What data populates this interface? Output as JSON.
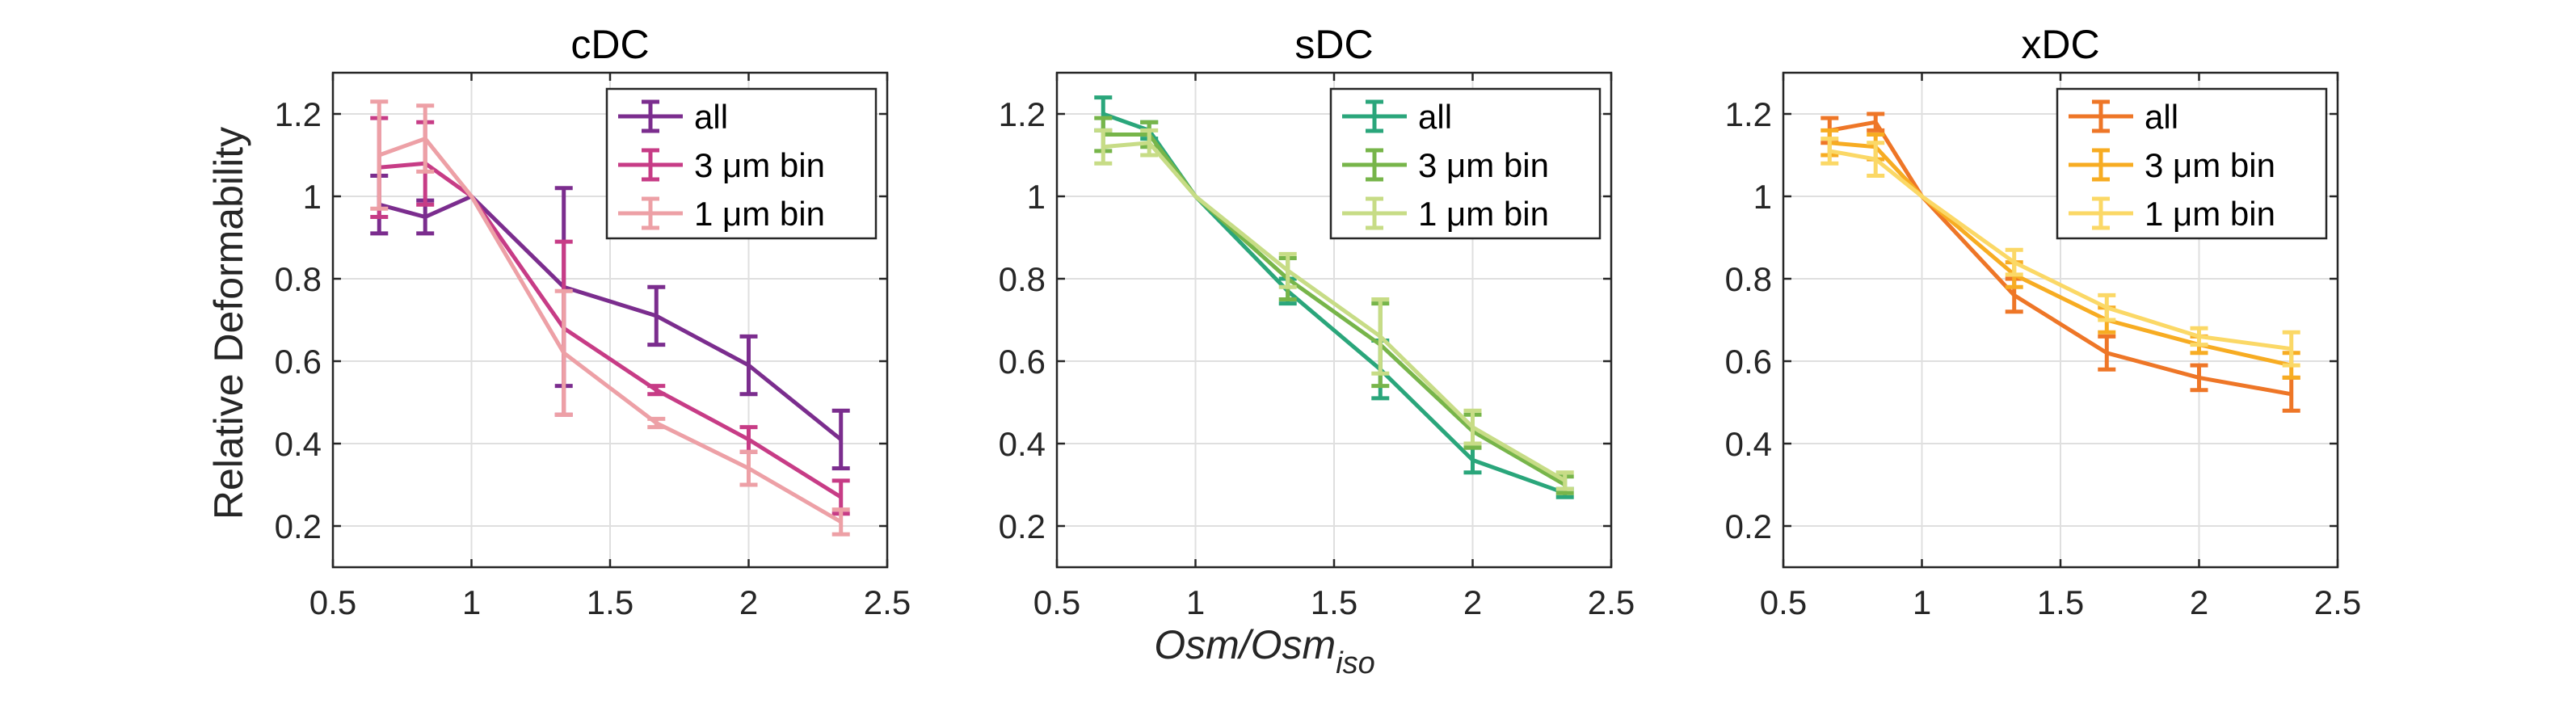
{
  "figure": {
    "xlabel_main": "Osm/Osm",
    "xlabel_sub": "iso",
    "ylabel": "Relative Deformability"
  },
  "chart_data": [
    {
      "type": "line",
      "title": "cDC",
      "xlim": [
        0.5,
        2.5
      ],
      "ylim": [
        0.1,
        1.3
      ],
      "xticks": [
        "0.5",
        "1",
        "1.5",
        "2",
        "2.5"
      ],
      "yticks": [
        "0.2",
        "0.4",
        "0.6",
        "0.8",
        "1",
        "1.2"
      ],
      "grid": true,
      "legend_position": "top-right",
      "series": [
        {
          "name": "all",
          "color": "#7b2d8e",
          "x": [
            0.667,
            0.833,
            1.0,
            1.333,
            1.667,
            2.0,
            2.333
          ],
          "y": [
            0.98,
            0.95,
            1.0,
            0.78,
            0.71,
            0.59,
            0.41
          ],
          "err": [
            0.07,
            0.04,
            0.0,
            0.24,
            0.07,
            0.07,
            0.07
          ]
        },
        {
          "name": "3 μm bin",
          "color": "#c73c86",
          "x": [
            0.667,
            0.833,
            1.0,
            1.333,
            1.667,
            2.0,
            2.333
          ],
          "y": [
            1.07,
            1.08,
            1.0,
            0.68,
            0.53,
            0.41,
            0.27
          ],
          "err": [
            0.12,
            0.1,
            0.0,
            0.21,
            0.01,
            0.03,
            0.04
          ]
        },
        {
          "name": "1 μm bin",
          "color": "#eda0a6",
          "x": [
            0.667,
            0.833,
            1.0,
            1.333,
            1.667,
            2.0,
            2.333
          ],
          "y": [
            1.1,
            1.14,
            1.0,
            0.62,
            0.45,
            0.34,
            0.21
          ],
          "err": [
            0.13,
            0.08,
            0.0,
            0.15,
            0.01,
            0.04,
            0.03
          ]
        }
      ]
    },
    {
      "type": "line",
      "title": "sDC",
      "xlim": [
        0.5,
        2.5
      ],
      "ylim": [
        0.1,
        1.3
      ],
      "xticks": [
        "0.5",
        "1",
        "1.5",
        "2",
        "2.5"
      ],
      "yticks": [
        "0.2",
        "0.4",
        "0.6",
        "0.8",
        "1",
        "1.2"
      ],
      "grid": true,
      "legend_position": "top-right",
      "series": [
        {
          "name": "all",
          "color": "#2aa67b",
          "x": [
            0.667,
            0.833,
            1.0,
            1.333,
            1.667,
            2.0,
            2.333
          ],
          "y": [
            1.2,
            1.16,
            1.0,
            0.77,
            0.58,
            0.36,
            0.28
          ],
          "err": [
            0.04,
            0.02,
            0.0,
            0.03,
            0.07,
            0.03,
            0.01
          ]
        },
        {
          "name": "3 μm bin",
          "color": "#77b54a",
          "x": [
            0.667,
            0.833,
            1.0,
            1.333,
            1.667,
            2.0,
            2.333
          ],
          "y": [
            1.15,
            1.15,
            1.0,
            0.8,
            0.64,
            0.43,
            0.3
          ],
          "err": [
            0.04,
            0.03,
            0.0,
            0.05,
            0.1,
            0.04,
            0.02
          ]
        },
        {
          "name": "1 μm bin",
          "color": "#c7dc86",
          "x": [
            0.667,
            0.833,
            1.0,
            1.333,
            1.667,
            2.0,
            2.333
          ],
          "y": [
            1.12,
            1.13,
            1.0,
            0.82,
            0.66,
            0.44,
            0.31
          ],
          "err": [
            0.04,
            0.03,
            0.0,
            0.04,
            0.09,
            0.04,
            0.02
          ]
        }
      ]
    },
    {
      "type": "line",
      "title": "xDC",
      "xlim": [
        0.5,
        2.5
      ],
      "ylim": [
        0.1,
        1.3
      ],
      "xticks": [
        "0.5",
        "1",
        "1.5",
        "2",
        "2.5"
      ],
      "yticks": [
        "0.2",
        "0.4",
        "0.6",
        "0.8",
        "1",
        "1.2"
      ],
      "grid": true,
      "legend_position": "top-right",
      "series": [
        {
          "name": "all",
          "color": "#ee7627",
          "x": [
            0.667,
            0.833,
            1.0,
            1.333,
            1.667,
            2.0,
            2.333
          ],
          "y": [
            1.16,
            1.18,
            1.0,
            0.76,
            0.62,
            0.56,
            0.52
          ],
          "err": [
            0.03,
            0.02,
            0.0,
            0.04,
            0.04,
            0.03,
            0.04
          ]
        },
        {
          "name": "3 μm bin",
          "color": "#f7ac22",
          "x": [
            0.667,
            0.833,
            1.0,
            1.333,
            1.667,
            2.0,
            2.333
          ],
          "y": [
            1.13,
            1.12,
            1.0,
            0.81,
            0.7,
            0.64,
            0.59
          ],
          "err": [
            0.03,
            0.03,
            0.0,
            0.03,
            0.03,
            0.02,
            0.03
          ]
        },
        {
          "name": "1 μm bin",
          "color": "#fbd866",
          "x": [
            0.667,
            0.833,
            1.0,
            1.333,
            1.667,
            2.0,
            2.333
          ],
          "y": [
            1.11,
            1.09,
            1.0,
            0.84,
            0.73,
            0.66,
            0.63
          ],
          "err": [
            0.03,
            0.04,
            0.0,
            0.03,
            0.03,
            0.02,
            0.04
          ]
        }
      ]
    }
  ]
}
